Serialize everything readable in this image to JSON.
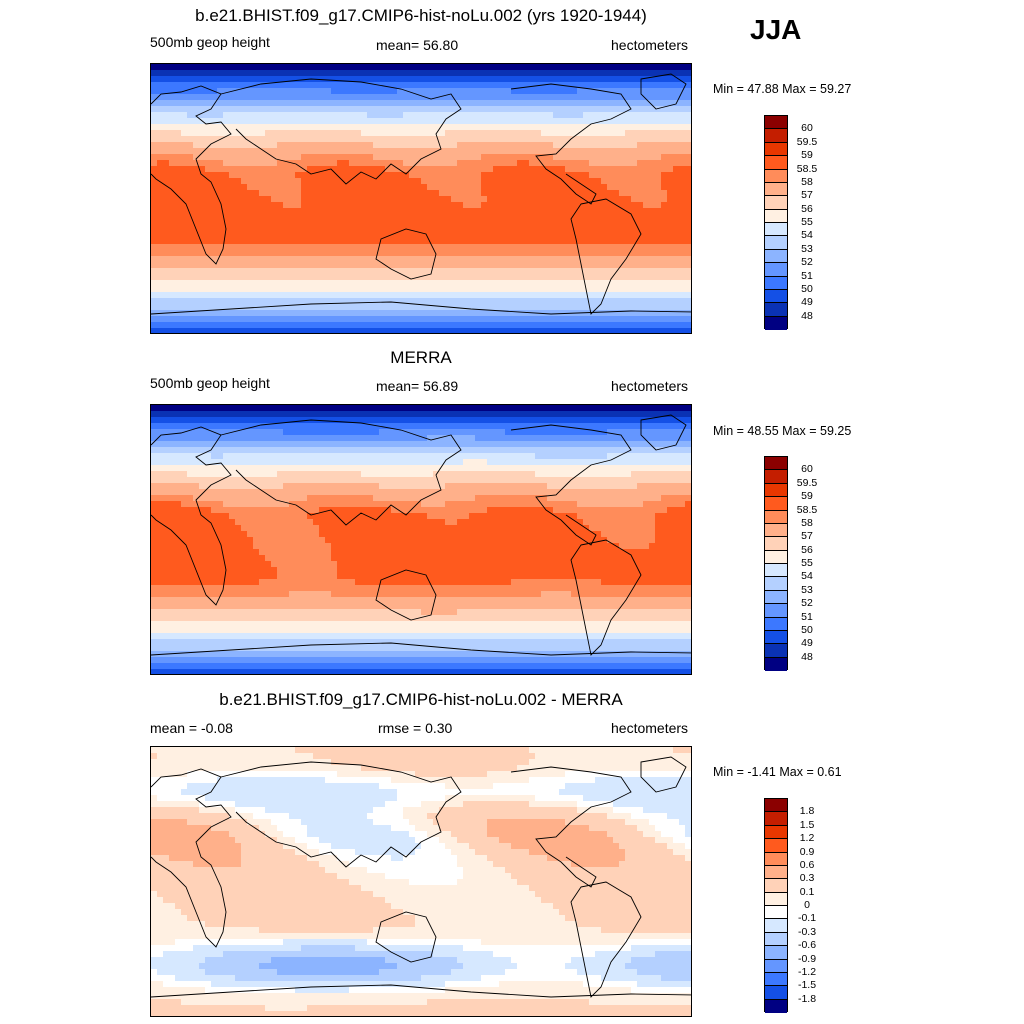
{
  "season": "JJA",
  "panels": [
    {
      "title": "b.e21.BHIST.f09_g17.CMIP6-hist-noLu.002 (yrs 1920-1944)",
      "left_label": "500mb geop height",
      "center_label": "mean=  56.80",
      "right_label": "hectometers",
      "minmax": "Min =  47.88 Max =  59.27",
      "colorbar": {
        "labels": [
          "60",
          "59.5",
          "59",
          "58.5",
          "58",
          "57",
          "56",
          "55",
          "54",
          "53",
          "52",
          "51",
          "50",
          "49",
          "48"
        ],
        "colors": [
          "#8b0000",
          "#c41e00",
          "#e83700",
          "#ff5a1e",
          "#ff8c5a",
          "#ffb08a",
          "#ffd2b8",
          "#fff0e2",
          "#d6e8ff",
          "#b4d0ff",
          "#8cb4ff",
          "#6496ff",
          "#3c78ff",
          "#1450e6",
          "#0a32b4",
          "#000082"
        ]
      },
      "field": "model"
    },
    {
      "title": "MERRA",
      "left_label": "500mb geop height",
      "center_label": "mean=  56.89",
      "right_label": "hectometers",
      "minmax": "Min =  48.55 Max =  59.25",
      "colorbar": {
        "labels": [
          "60",
          "59.5",
          "59",
          "58.5",
          "58",
          "57",
          "56",
          "55",
          "54",
          "53",
          "52",
          "51",
          "50",
          "49",
          "48"
        ],
        "colors": [
          "#8b0000",
          "#c41e00",
          "#e83700",
          "#ff5a1e",
          "#ff8c5a",
          "#ffb08a",
          "#ffd2b8",
          "#fff0e2",
          "#d6e8ff",
          "#b4d0ff",
          "#8cb4ff",
          "#6496ff",
          "#3c78ff",
          "#1450e6",
          "#0a32b4",
          "#000082"
        ]
      },
      "field": "obs"
    },
    {
      "title": "b.e21.BHIST.f09_g17.CMIP6-hist-noLu.002 - MERRA",
      "left_label": "mean =  -0.08",
      "center_label": "rmse =   0.30",
      "right_label": "hectometers",
      "minmax": "Min =  -1.41 Max =   0.61",
      "colorbar": {
        "labels": [
          "1.8",
          "1.5",
          "1.2",
          "0.9",
          "0.6",
          "0.3",
          "0.1",
          "0",
          "-0.1",
          "-0.3",
          "-0.6",
          "-0.9",
          "-1.2",
          "-1.5",
          "-1.8"
        ],
        "colors": [
          "#8b0000",
          "#c41e00",
          "#e83700",
          "#ff5a1e",
          "#ff8c5a",
          "#ffb08a",
          "#ffd2b8",
          "#fff0e2",
          "#ffffff",
          "#d6e8ff",
          "#b4d0ff",
          "#8cb4ff",
          "#6496ff",
          "#3c78ff",
          "#1450e6",
          "#000082"
        ]
      },
      "field": "diff"
    }
  ]
}
